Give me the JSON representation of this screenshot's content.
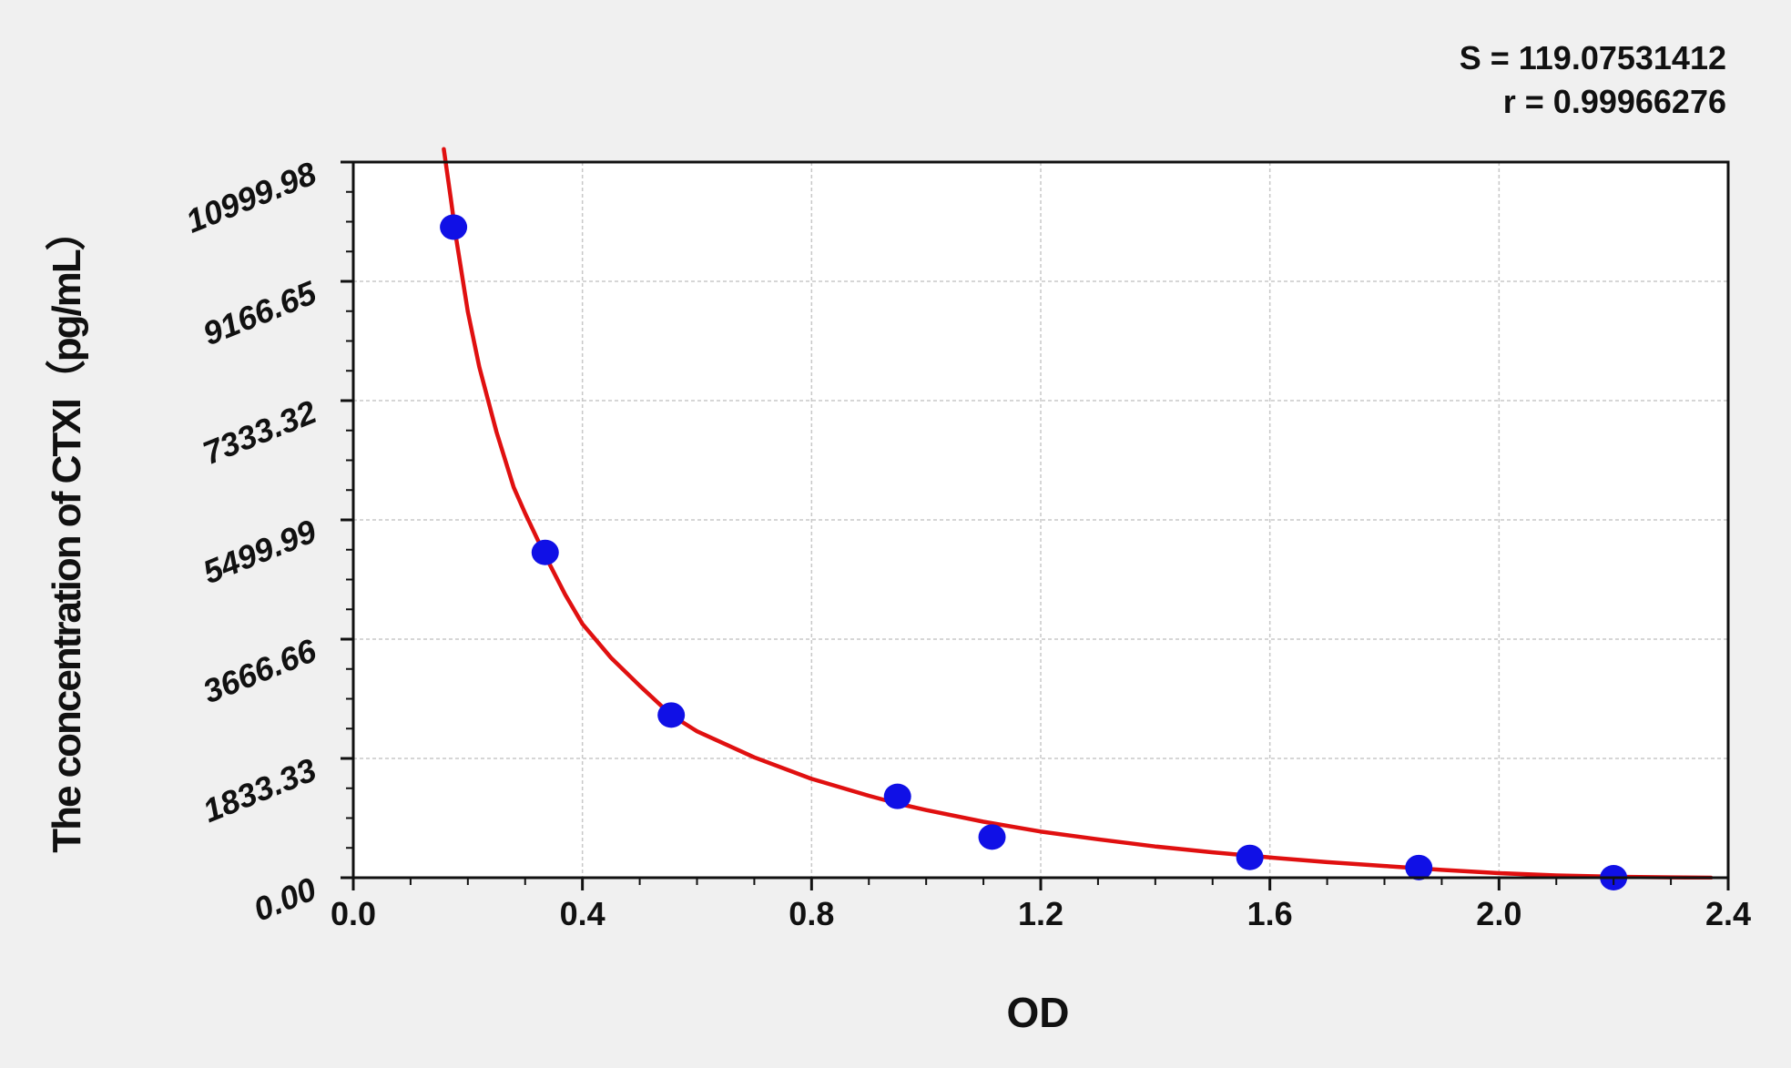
{
  "chart_data": {
    "type": "scatter",
    "title": "",
    "xlabel": "OD",
    "ylabel": "The concentration of CTXI（pg/mL）",
    "xlim": [
      0.0,
      2.4
    ],
    "ylim": [
      0.0,
      10999.98
    ],
    "x_ticks": [
      "0.0",
      "0.4",
      "0.8",
      "1.2",
      "1.6",
      "2.0",
      "2.4"
    ],
    "y_ticks": [
      "0.00",
      "1833.33",
      "3666.66",
      "5499.99",
      "7333.32",
      "9166.65",
      "10999.98"
    ],
    "grid": true,
    "annotations": {
      "s_text": "S = 119.07531412",
      "r_text": "r = 0.99966276"
    },
    "series": [
      {
        "kind": "points",
        "x": [
          0.175,
          0.335,
          0.555,
          0.95,
          1.115,
          1.565,
          1.86,
          2.2
        ],
        "y": [
          10000,
          5000,
          2500,
          1250,
          625,
          312,
          156,
          0
        ],
        "color": "#1010e6"
      },
      {
        "kind": "fitted-curve",
        "x": [
          0.158,
          0.17,
          0.18,
          0.2,
          0.22,
          0.25,
          0.28,
          0.3,
          0.335,
          0.37,
          0.4,
          0.45,
          0.5,
          0.555,
          0.6,
          0.7,
          0.8,
          0.9,
          0.95,
          1.0,
          1.1,
          1.2,
          1.3,
          1.4,
          1.5,
          1.6,
          1.7,
          1.8,
          1.9,
          2.0,
          2.1,
          2.2,
          2.3,
          2.37
        ],
        "y": [
          11200,
          10450,
          9800,
          8700,
          7850,
          6850,
          6000,
          5600,
          4950,
          4350,
          3900,
          3380,
          2950,
          2500,
          2250,
          1850,
          1520,
          1260,
          1140,
          1040,
          860,
          710,
          590,
          480,
          390,
          310,
          240,
          180,
          120,
          70,
          35,
          15,
          5,
          0
        ],
        "color": "#e01010"
      }
    ]
  }
}
